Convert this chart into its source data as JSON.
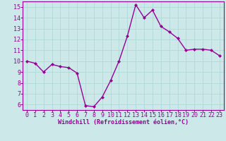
{
  "x": [
    0,
    1,
    2,
    3,
    4,
    5,
    6,
    7,
    8,
    9,
    10,
    11,
    12,
    13,
    14,
    15,
    16,
    17,
    18,
    19,
    20,
    21,
    22,
    23
  ],
  "y": [
    10.0,
    9.8,
    9.0,
    9.7,
    9.5,
    9.4,
    8.9,
    5.9,
    5.8,
    6.7,
    8.2,
    10.0,
    12.3,
    15.2,
    14.0,
    14.7,
    13.2,
    12.7,
    12.1,
    11.0,
    11.1,
    11.1,
    11.0,
    10.5
  ],
  "line_color": "#990099",
  "marker": "D",
  "marker_size": 2,
  "linewidth": 1.0,
  "xlabel": "Windchill (Refroidissement éolien,°C)",
  "ylabel": "",
  "xlim": [
    -0.5,
    23.5
  ],
  "ylim": [
    5.5,
    15.5
  ],
  "yticks": [
    6,
    7,
    8,
    9,
    10,
    11,
    12,
    13,
    14,
    15
  ],
  "xticks": [
    0,
    1,
    2,
    3,
    4,
    5,
    6,
    7,
    8,
    9,
    10,
    11,
    12,
    13,
    14,
    15,
    16,
    17,
    18,
    19,
    20,
    21,
    22,
    23
  ],
  "grid_color": "#b0d8d8",
  "background_color": "#cce8e8",
  "tick_color": "#990099",
  "label_color": "#990099",
  "xlabel_fontsize": 6,
  "tick_fontsize": 6
}
